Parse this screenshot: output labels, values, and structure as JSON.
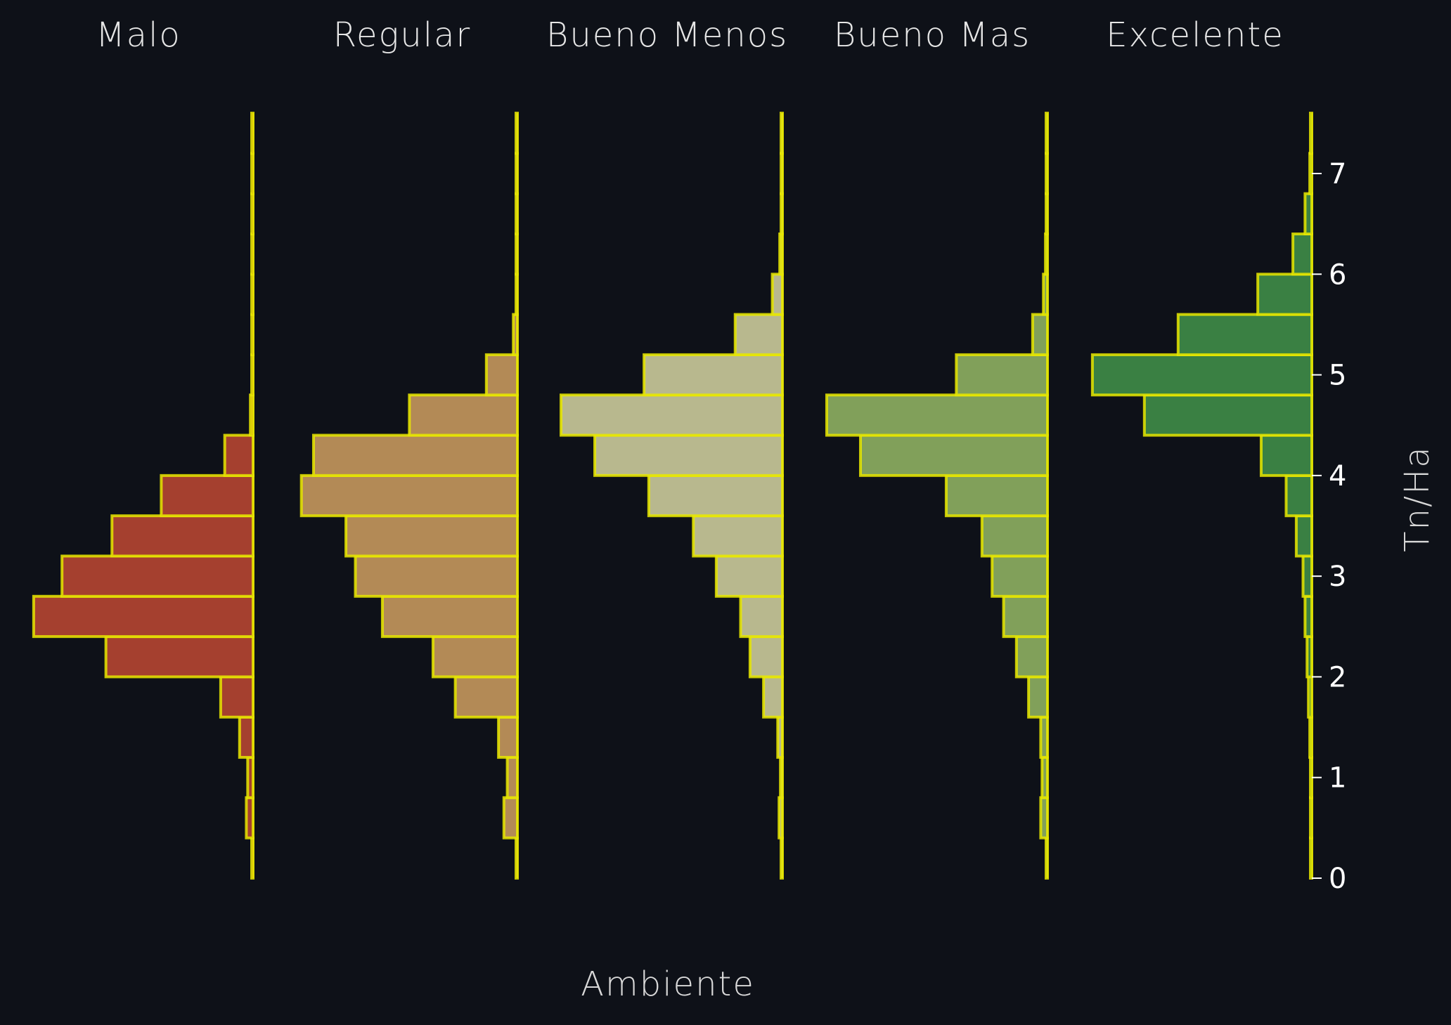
{
  "chart_data": {
    "type": "histogram",
    "orientation": "horizontal",
    "xlabel": "Ambiente",
    "ylabel": "Tn/Ha",
    "ylim": [
      0,
      7.6
    ],
    "yticks": [
      0,
      1,
      2,
      3,
      4,
      5,
      6,
      7
    ],
    "bin_edges": [
      0.0,
      0.4,
      0.8,
      1.2,
      1.6,
      2.0,
      2.4,
      2.8,
      3.2,
      3.6,
      4.0,
      4.4,
      4.8,
      5.2,
      5.6,
      6.0,
      6.4,
      6.8,
      7.2,
      7.6
    ],
    "edge_color": "#e8e800",
    "background": "#0e1118",
    "series": [
      {
        "name": "Malo",
        "color": "#a5402f",
        "counts": [
          2,
          10,
          8,
          20,
          48,
          218,
          325,
          283,
          209,
          136,
          42,
          4,
          0,
          0,
          0,
          0,
          0,
          0,
          0
        ]
      },
      {
        "name": "Regular",
        "color": "#b38a56",
        "counts": [
          2,
          20,
          15,
          28,
          92,
          125,
          200,
          240,
          254,
          320,
          302,
          160,
          46,
          6,
          2,
          1,
          1,
          0,
          0
        ]
      },
      {
        "name": "Bueno Menos",
        "color": "#b8b88e",
        "counts": [
          1,
          5,
          3,
          7,
          28,
          48,
          62,
          98,
          132,
          198,
          278,
          328,
          205,
          70,
          15,
          4,
          1,
          1,
          0
        ]
      },
      {
        "name": "Bueno Mas",
        "color": "#81a05a",
        "counts": [
          1,
          10,
          8,
          10,
          28,
          46,
          65,
          82,
          97,
          150,
          277,
          327,
          135,
          22,
          6,
          3,
          1,
          1,
          0
        ]
      },
      {
        "name": "Excelente",
        "color": "#3a8043",
        "counts": [
          1,
          1,
          1,
          3,
          5,
          7,
          10,
          13,
          23,
          38,
          75,
          248,
          325,
          198,
          80,
          28,
          10,
          3,
          1
        ]
      }
    ]
  }
}
